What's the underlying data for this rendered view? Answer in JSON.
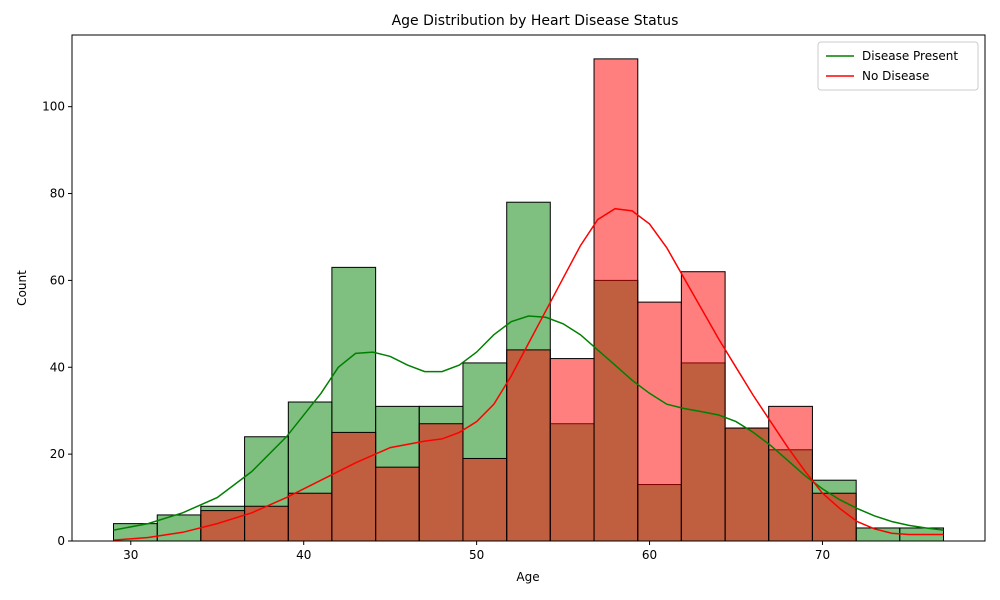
{
  "chart_data": {
    "type": "histogram",
    "title": "Age Distribution by Heart Disease Status",
    "xlabel": "Age",
    "ylabel": "Count",
    "xlim": [
      26.6,
      79.4
    ],
    "ylim": [
      0,
      116.5
    ],
    "xticks": [
      30,
      40,
      50,
      60,
      70
    ],
    "yticks": [
      0,
      20,
      40,
      60,
      80,
      100
    ],
    "bin_edges": [
      29.0,
      31.53,
      34.05,
      36.58,
      39.11,
      41.63,
      44.16,
      46.68,
      49.21,
      51.74,
      54.26,
      56.79,
      59.32,
      61.84,
      64.37,
      66.89,
      69.42,
      71.95,
      74.47,
      77.0
    ],
    "legend_position": "upper right",
    "series": [
      {
        "name": "Disease Present",
        "color": "#008000",
        "fill": "#7fbf7f",
        "counts": [
          4,
          6,
          8,
          24,
          32,
          63,
          31,
          31,
          41,
          78,
          27,
          60,
          13,
          41,
          26,
          21,
          14,
          3,
          3
        ],
        "kde": [
          [
            29,
            2.5
          ],
          [
            31,
            4
          ],
          [
            33,
            6.5
          ],
          [
            35,
            10
          ],
          [
            37,
            16
          ],
          [
            39,
            24
          ],
          [
            41,
            34
          ],
          [
            42,
            40
          ],
          [
            43,
            43.2
          ],
          [
            44,
            43.5
          ],
          [
            45,
            42.5
          ],
          [
            46,
            40.5
          ],
          [
            47,
            39
          ],
          [
            48,
            39
          ],
          [
            49,
            40.5
          ],
          [
            50,
            43.5
          ],
          [
            51,
            47.5
          ],
          [
            52,
            50.5
          ],
          [
            53,
            51.8
          ],
          [
            54,
            51.5
          ],
          [
            55,
            50
          ],
          [
            56,
            47.5
          ],
          [
            57,
            44
          ],
          [
            58,
            40.5
          ],
          [
            59,
            37
          ],
          [
            60,
            34
          ],
          [
            61,
            31.5
          ],
          [
            62,
            30.5
          ],
          [
            63,
            29.8
          ],
          [
            64,
            29
          ],
          [
            65,
            27.5
          ],
          [
            66,
            25
          ],
          [
            67,
            22
          ],
          [
            68,
            18.5
          ],
          [
            69,
            15
          ],
          [
            70,
            12
          ],
          [
            71,
            9.5
          ],
          [
            72,
            7.5
          ],
          [
            73,
            5.8
          ],
          [
            74,
            4.5
          ],
          [
            75,
            3.6
          ],
          [
            76,
            3
          ],
          [
            77,
            2.5
          ]
        ]
      },
      {
        "name": "No Disease",
        "color": "#ff0000",
        "fill": "#ff7f7f",
        "counts": [
          0,
          0,
          7,
          8,
          11,
          25,
          17,
          27,
          19,
          44,
          42,
          111,
          55,
          62,
          26,
          31,
          11,
          0,
          0
        ],
        "kde": [
          [
            29,
            0.2
          ],
          [
            31,
            0.8
          ],
          [
            33,
            2
          ],
          [
            35,
            4
          ],
          [
            37,
            6.5
          ],
          [
            39,
            10
          ],
          [
            41,
            14
          ],
          [
            43,
            18
          ],
          [
            45,
            21.5
          ],
          [
            47,
            23
          ],
          [
            48,
            23.5
          ],
          [
            49,
            25
          ],
          [
            50,
            27.5
          ],
          [
            51,
            31.5
          ],
          [
            52,
            38
          ],
          [
            53,
            45.5
          ],
          [
            54,
            53
          ],
          [
            55,
            60.5
          ],
          [
            56,
            68
          ],
          [
            57,
            74
          ],
          [
            58,
            76.5
          ],
          [
            59,
            76
          ],
          [
            60,
            73
          ],
          [
            61,
            67.5
          ],
          [
            62,
            60.5
          ],
          [
            63,
            53.5
          ],
          [
            64,
            46.5
          ],
          [
            65,
            40
          ],
          [
            66,
            33.5
          ],
          [
            67,
            27.5
          ],
          [
            68,
            21.5
          ],
          [
            69,
            16
          ],
          [
            70,
            11
          ],
          [
            71,
            7.5
          ],
          [
            72,
            4.5
          ],
          [
            73,
            2.8
          ],
          [
            74,
            1.8
          ],
          [
            75,
            1.5
          ],
          [
            76,
            1.5
          ],
          [
            77,
            1.5
          ]
        ]
      }
    ]
  }
}
